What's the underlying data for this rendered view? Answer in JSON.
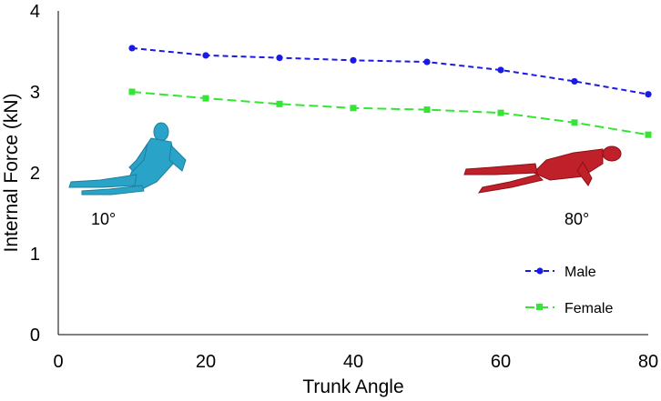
{
  "chart_data": {
    "type": "line",
    "title": "",
    "xlabel": "Trunk Angle",
    "ylabel": "Internal Force (kN)",
    "xlim": [
      0,
      80
    ],
    "ylim": [
      0,
      4
    ],
    "xticks": [
      0,
      20,
      40,
      60,
      80
    ],
    "yticks": [
      0,
      1,
      2,
      3,
      4
    ],
    "grid": false,
    "legend_position": "bottom-right",
    "x": [
      10,
      20,
      30,
      40,
      50,
      60,
      70,
      80
    ],
    "series": [
      {
        "name": "Male",
        "color": "#1a1ae6",
        "marker": "circle",
        "line": "dashed",
        "values": [
          3.54,
          3.45,
          3.42,
          3.39,
          3.37,
          3.27,
          3.13,
          2.97
        ]
      },
      {
        "name": "Female",
        "color": "#33e633",
        "marker": "square",
        "line": "dashed",
        "values": [
          3.0,
          2.92,
          2.85,
          2.8,
          2.78,
          2.74,
          2.62,
          2.47
        ]
      }
    ],
    "annotations": [
      {
        "text": "10°",
        "icon": "reclined-human-model-blue",
        "color": "#2aa3c8"
      },
      {
        "text": "80°",
        "icon": "reclined-human-model-red",
        "color": "#c0202a"
      }
    ]
  }
}
